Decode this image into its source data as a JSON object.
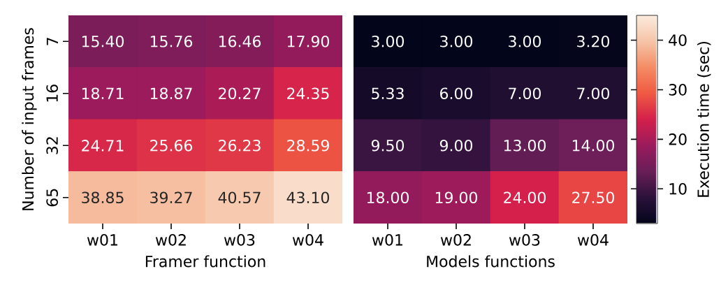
{
  "chart_data": [
    {
      "type": "heatmap",
      "xlabel": "Framer function",
      "ylabel": "Number of input frames",
      "categories": [
        "w01",
        "w02",
        "w03",
        "w04"
      ],
      "y_categories": [
        "7",
        "16",
        "32",
        "65"
      ],
      "cells": [
        [
          15.4,
          15.76,
          16.46,
          17.9
        ],
        [
          18.71,
          18.87,
          20.27,
          24.35
        ],
        [
          24.71,
          25.66,
          26.23,
          28.59
        ],
        [
          38.85,
          39.27,
          40.57,
          43.1
        ]
      ],
      "cell_labels": [
        [
          "15.40",
          "15.76",
          "16.46",
          "17.90"
        ],
        [
          "18.71",
          "18.87",
          "20.27",
          "24.35"
        ],
        [
          "24.71",
          "25.66",
          "26.23",
          "28.59"
        ],
        [
          "38.85",
          "39.27",
          "40.57",
          "43.10"
        ]
      ],
      "tick_labels": true
    },
    {
      "type": "heatmap",
      "xlabel": "Models functions",
      "clabel": "Execution time (sec)",
      "tick_labels": "x",
      "categories": [
        "w01",
        "w02",
        "w03",
        "w04"
      ],
      "y_categories": [
        "7",
        "16",
        "32",
        "65"
      ],
      "cells": [
        [
          3.0,
          3.0,
          3.0,
          3.2
        ],
        [
          5.33,
          6.0,
          7.0,
          7.0
        ],
        [
          9.5,
          9.0,
          13.0,
          14.0
        ],
        [
          18.0,
          19.0,
          24.0,
          27.5
        ]
      ],
      "cell_labels": [
        [
          "3.00",
          "3.00",
          "3.00",
          "3.20"
        ],
        [
          "5.33",
          "6.00",
          "7.00",
          "7.00"
        ],
        [
          "9.50",
          "9.00",
          "13.00",
          "14.00"
        ],
        [
          "18.00",
          "19.00",
          "24.00",
          "27.50"
        ]
      ],
      "clim": [
        3,
        45
      ],
      "cticks": [
        10,
        20,
        30,
        40
      ]
    }
  ]
}
